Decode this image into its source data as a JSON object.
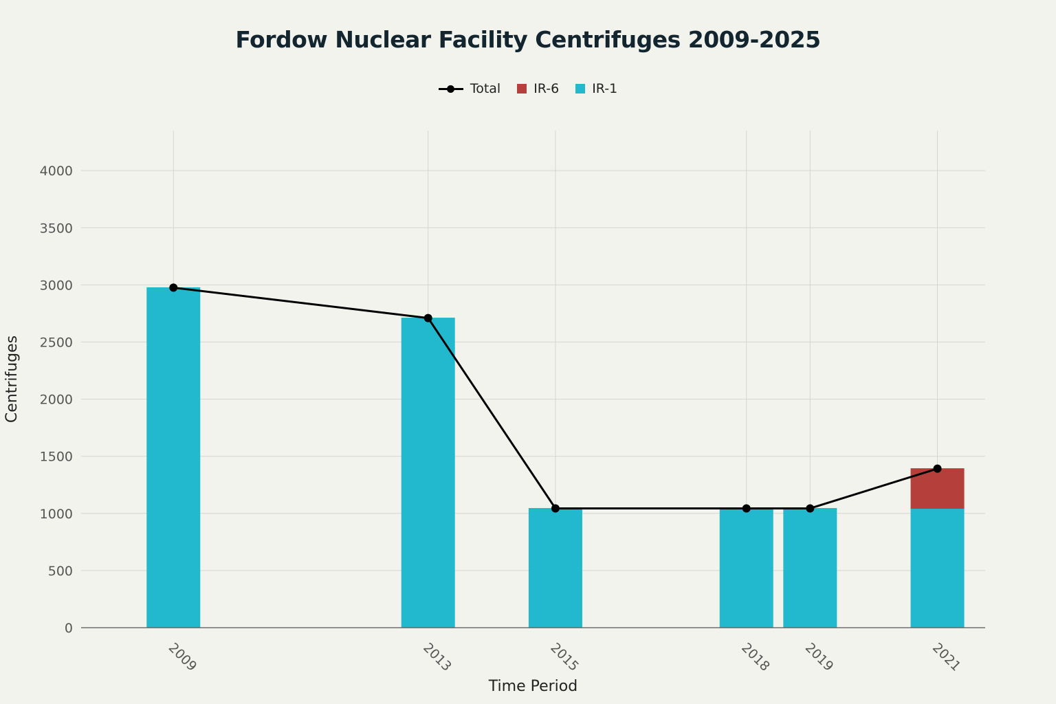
{
  "chart_data": {
    "type": "bar",
    "title": "Fordow Nuclear Facility Centrifuges 2009-2025",
    "xlabel": "Time Period",
    "ylabel": "Centrifuges",
    "x": [
      2009,
      2013,
      2015,
      2018,
      2019,
      2021
    ],
    "x_tick_labels": [
      "2009",
      "2013",
      "2015",
      "2018",
      "2019",
      "2021"
    ],
    "xlim": [
      2007.55,
      2021.75
    ],
    "ylim": [
      0,
      4350
    ],
    "y_ticks": [
      0,
      500,
      1000,
      1500,
      2000,
      2500,
      3000,
      3500,
      4000
    ],
    "grid": true,
    "legend_position": "top-center",
    "stacked": true,
    "series": [
      {
        "name": "IR-1",
        "kind": "bar",
        "color": "#22b8cd",
        "values": [
          2976,
          2710,
          1044,
          1044,
          1044,
          1044
        ]
      },
      {
        "name": "IR-6",
        "kind": "bar",
        "color": "#b5403b",
        "values": [
          0,
          0,
          0,
          0,
          0,
          348
        ]
      },
      {
        "name": "Total",
        "kind": "line",
        "color": "#000000",
        "values": [
          2976,
          2710,
          1044,
          1044,
          1044,
          1392
        ]
      }
    ],
    "legend_order": [
      "Total",
      "IR-6",
      "IR-1"
    ]
  }
}
